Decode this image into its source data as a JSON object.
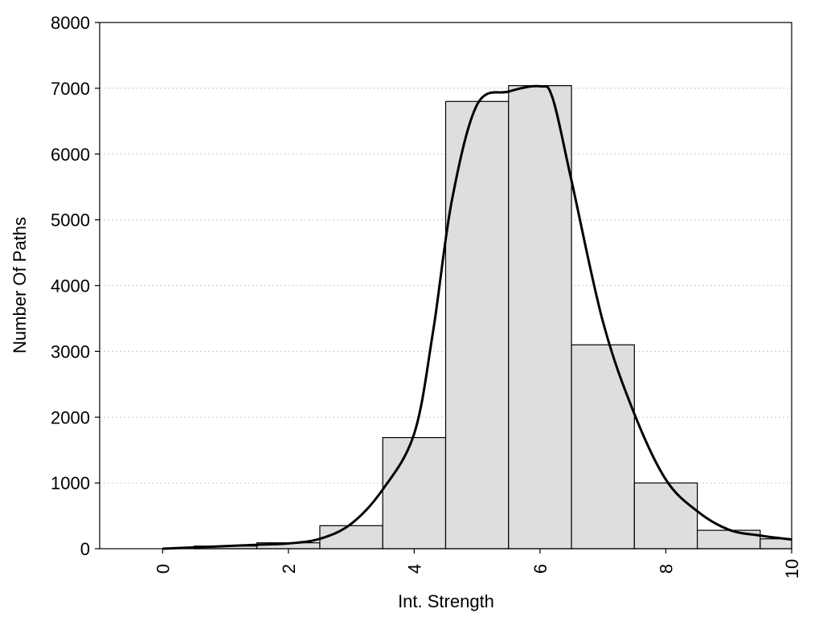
{
  "chart_data": {
    "type": "bar",
    "xlabel": "Int. Strength",
    "ylabel": "Number Of Paths",
    "xlim": [
      -1,
      10
    ],
    "ylim": [
      0,
      8000
    ],
    "x_ticks": [
      0,
      2,
      4,
      6,
      8,
      10
    ],
    "y_ticks": [
      0,
      1000,
      2000,
      3000,
      4000,
      5000,
      6000,
      7000,
      8000
    ],
    "bin_width": 1,
    "bars": [
      {
        "x": 0,
        "value": 0
      },
      {
        "x": 1,
        "value": 40
      },
      {
        "x": 2,
        "value": 90
      },
      {
        "x": 3,
        "value": 350
      },
      {
        "x": 4,
        "value": 1690
      },
      {
        "x": 5,
        "value": 6800
      },
      {
        "x": 6,
        "value": 7040
      },
      {
        "x": 7,
        "value": 3100
      },
      {
        "x": 8,
        "value": 1000
      },
      {
        "x": 9,
        "value": 280
      },
      {
        "x": 10,
        "value": 150
      }
    ],
    "curve": {
      "x": [
        0,
        1,
        1.5,
        2,
        2.5,
        3,
        3.5,
        4,
        4.3,
        4.6,
        5,
        5.5,
        6,
        6.2,
        6.5,
        7,
        7.5,
        8,
        8.5,
        9,
        9.5,
        10
      ],
      "y": [
        0,
        40,
        60,
        80,
        150,
        380,
        900,
        1750,
        3300,
        5300,
        6750,
        6950,
        7030,
        6850,
        5600,
        3450,
        2050,
        1050,
        570,
        290,
        200,
        140
      ]
    },
    "grid": {
      "y": true,
      "x": false
    }
  }
}
